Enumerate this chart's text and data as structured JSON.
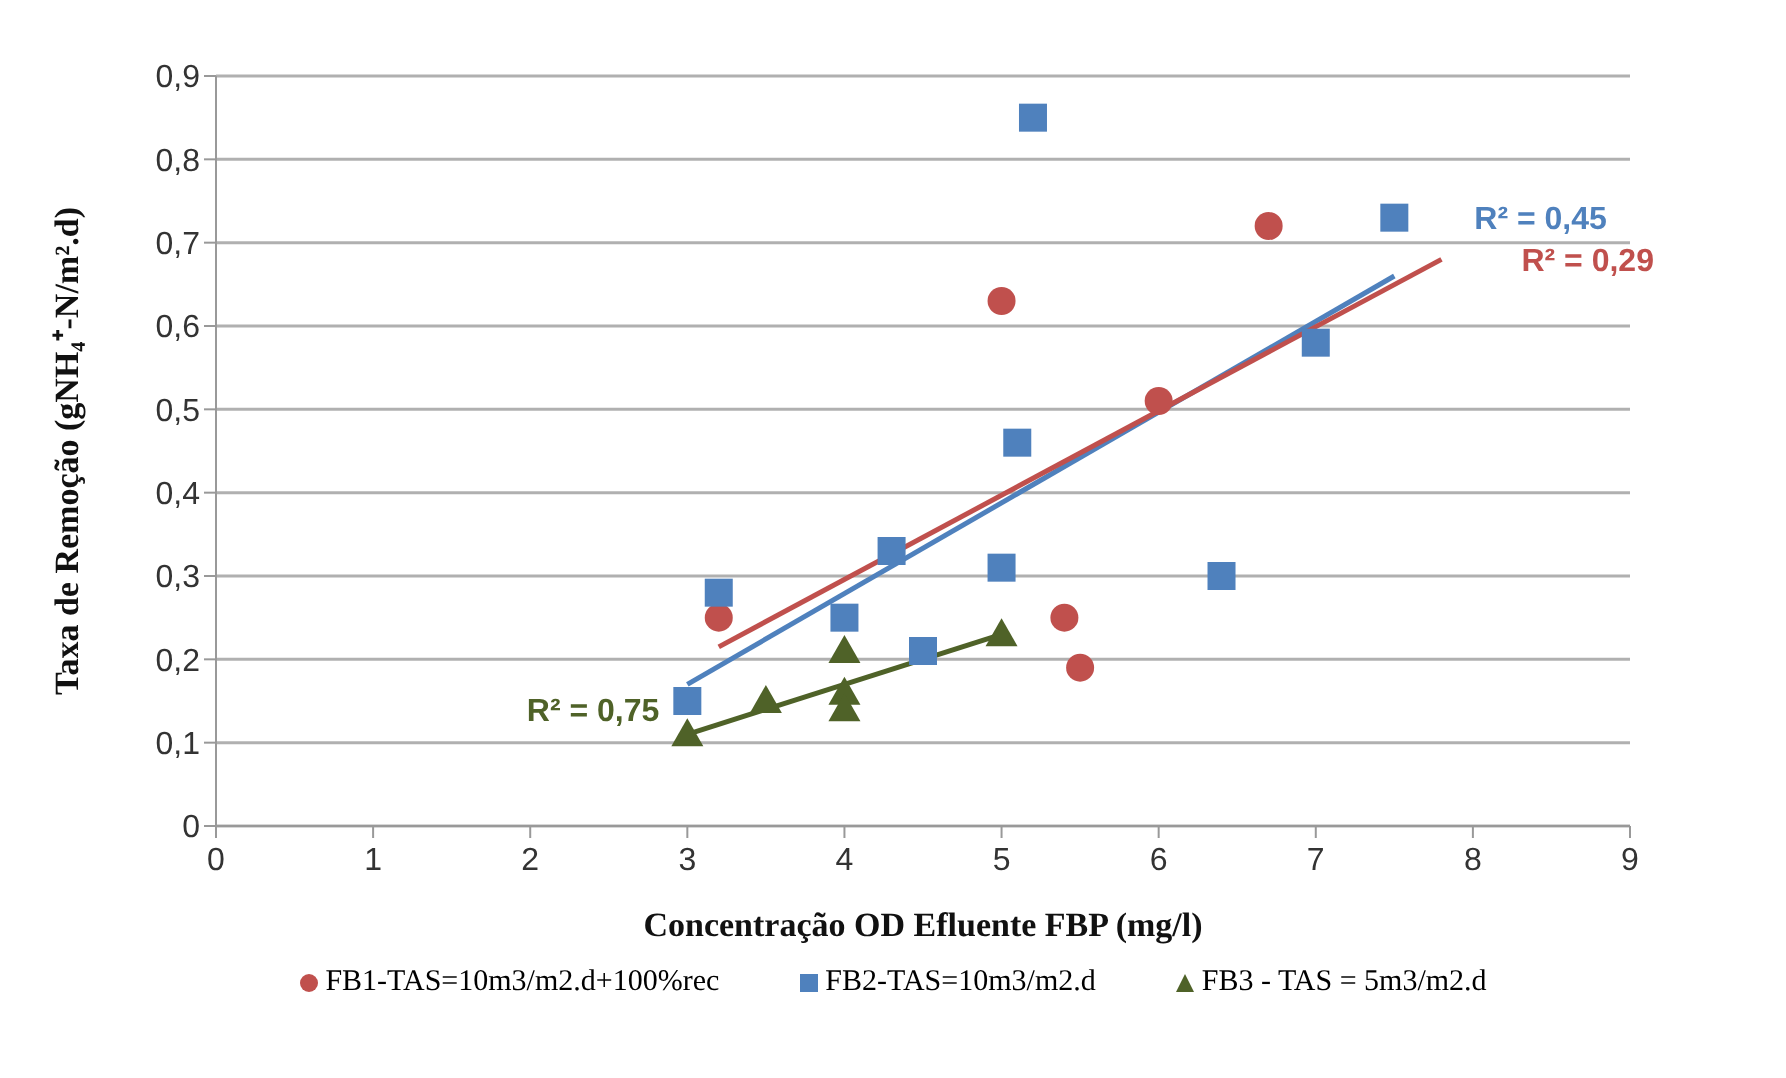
{
  "chart_data": {
    "type": "scatter",
    "xlabel": "Concentração OD Efluente FBP (mg/l)",
    "ylabel": "Taxa de Remoção (gNH₄⁺-N/m².d)",
    "xlim": [
      0,
      9
    ],
    "xticks": [
      0,
      1,
      2,
      3,
      4,
      5,
      6,
      7,
      8,
      9
    ],
    "ylim": [
      0,
      0.9
    ],
    "yticks": [
      {
        "value": 0,
        "label": "0"
      },
      {
        "value": 0.1,
        "label": "0,1"
      },
      {
        "value": 0.2,
        "label": "0,2"
      },
      {
        "value": 0.3,
        "label": "0,3"
      },
      {
        "value": 0.4,
        "label": "0,4"
      },
      {
        "value": 0.5,
        "label": "0,5"
      },
      {
        "value": 0.6,
        "label": "0,6"
      },
      {
        "value": 0.7,
        "label": "0,7"
      },
      {
        "value": 0.8,
        "label": "0,8"
      },
      {
        "value": 0.9,
        "label": "0,9"
      }
    ],
    "grid": "y",
    "legend": "bottom",
    "series": [
      {
        "name": "FB1-TAS=10m3/m2.d+100%rec",
        "color": "#c0504d",
        "marker": "circle",
        "x": [
          3.2,
          5.0,
          5.4,
          5.5,
          6.0,
          6.7
        ],
        "values": [
          0.25,
          0.63,
          0.25,
          0.19,
          0.51,
          0.72
        ]
      },
      {
        "name": "FB2-TAS=10m3/m2.d",
        "color": "#4f81bd",
        "marker": "square",
        "x": [
          3.0,
          3.2,
          4.0,
          4.3,
          4.5,
          5.0,
          5.1,
          5.2,
          6.4,
          7.0,
          7.5
        ],
        "values": [
          0.15,
          0.28,
          0.25,
          0.33,
          0.21,
          0.31,
          0.46,
          0.85,
          0.3,
          0.58,
          0.73
        ]
      },
      {
        "name": "FB3 - TAS = 5m3/m2.d",
        "color": "#4f6228",
        "marker": "triangle",
        "x": [
          3.0,
          3.5,
          4.0,
          4.0,
          4.0,
          5.0
        ],
        "values": [
          0.11,
          0.15,
          0.21,
          0.16,
          0.14,
          0.23
        ]
      },
      {
        "type": "line",
        "color": "#4f81bd",
        "marker": "none",
        "x": [
          3.0,
          7.5
        ],
        "values": [
          0.17,
          0.66
        ]
      },
      {
        "type": "line",
        "color": "#c0504d",
        "marker": "none",
        "x": [
          3.2,
          7.8
        ],
        "values": [
          0.215,
          0.68
        ]
      },
      {
        "type": "line",
        "color": "#4f6228",
        "marker": "none",
        "x": [
          3.0,
          5.0
        ],
        "values": [
          0.11,
          0.23
        ]
      }
    ],
    "annotations": [
      {
        "text": "R² = 0,45",
        "x": 7.5,
        "y": 0.73
      },
      {
        "text": "R² = 0,29",
        "x": 7.8,
        "y": 0.68
      },
      {
        "text": "R² = 0,75",
        "x": 3.0,
        "y": 0.14
      }
    ]
  }
}
